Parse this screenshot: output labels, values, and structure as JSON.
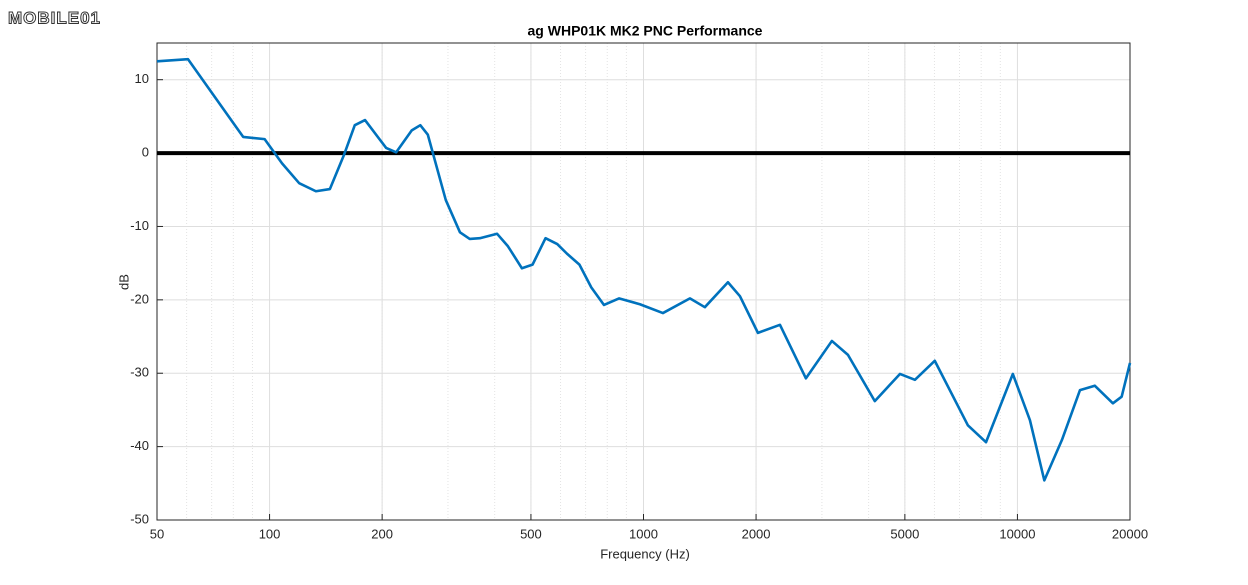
{
  "watermark": "MOBILE01",
  "chart_data": {
    "type": "line",
    "title": "ag WHP01K MK2 PNC Performance",
    "x_label": "Frequency (Hz)",
    "y_label": "dB",
    "x_scale": "log",
    "grid": true,
    "minor_grid": true,
    "hline": 0,
    "xlim": [
      50,
      20000
    ],
    "xticks": [
      50,
      100,
      200,
      500,
      1000,
      2000,
      5000,
      10000,
      20000
    ],
    "ylim": [
      -50,
      15
    ],
    "yticks": [
      -50,
      -40,
      -30,
      -20,
      -10,
      0,
      10
    ],
    "x": [
      50,
      60.5,
      85,
      97,
      108,
      120,
      133,
      145,
      158,
      169,
      180,
      205,
      218,
      240,
      253,
      265,
      296,
      323,
      343,
      365,
      406,
      434,
      473,
      505,
      547,
      588,
      624,
      674,
      725,
      784,
      860,
      978,
      1127,
      1331,
      1459,
      1682,
      1811,
      2023,
      2317,
      2718,
      3190,
      3522,
      4155,
      4850,
      5320,
      6010,
      7370,
      8240,
      9720,
      10800,
      11800,
      13150,
      14700,
      16100,
      18000,
      19000,
      20000
    ],
    "series": [
      {
        "name": "PNC",
        "color": "#0072bd",
        "values": [
          12.5,
          12.8,
          2.2,
          1.9,
          -1.4,
          -4.1,
          -5.2,
          -4.9,
          -0.3,
          3.8,
          4.5,
          0.7,
          0.1,
          3.1,
          3.8,
          2.5,
          -6.4,
          -10.8,
          -11.7,
          -11.6,
          -11.0,
          -12.7,
          -15.7,
          -15.2,
          -11.6,
          -12.4,
          -13.7,
          -15.2,
          -18.3,
          -20.7,
          -19.8,
          -20.6,
          -21.8,
          -19.8,
          -21.0,
          -17.6,
          -19.5,
          -24.5,
          -23.4,
          -30.7,
          -25.6,
          -27.5,
          -33.8,
          -30.1,
          -30.9,
          -28.3,
          -37.1,
          -39.4,
          -30.1,
          -36.4,
          -44.6,
          -39.1,
          -32.3,
          -31.7,
          -34.1,
          -33.2,
          -28.6
        ]
      }
    ]
  }
}
